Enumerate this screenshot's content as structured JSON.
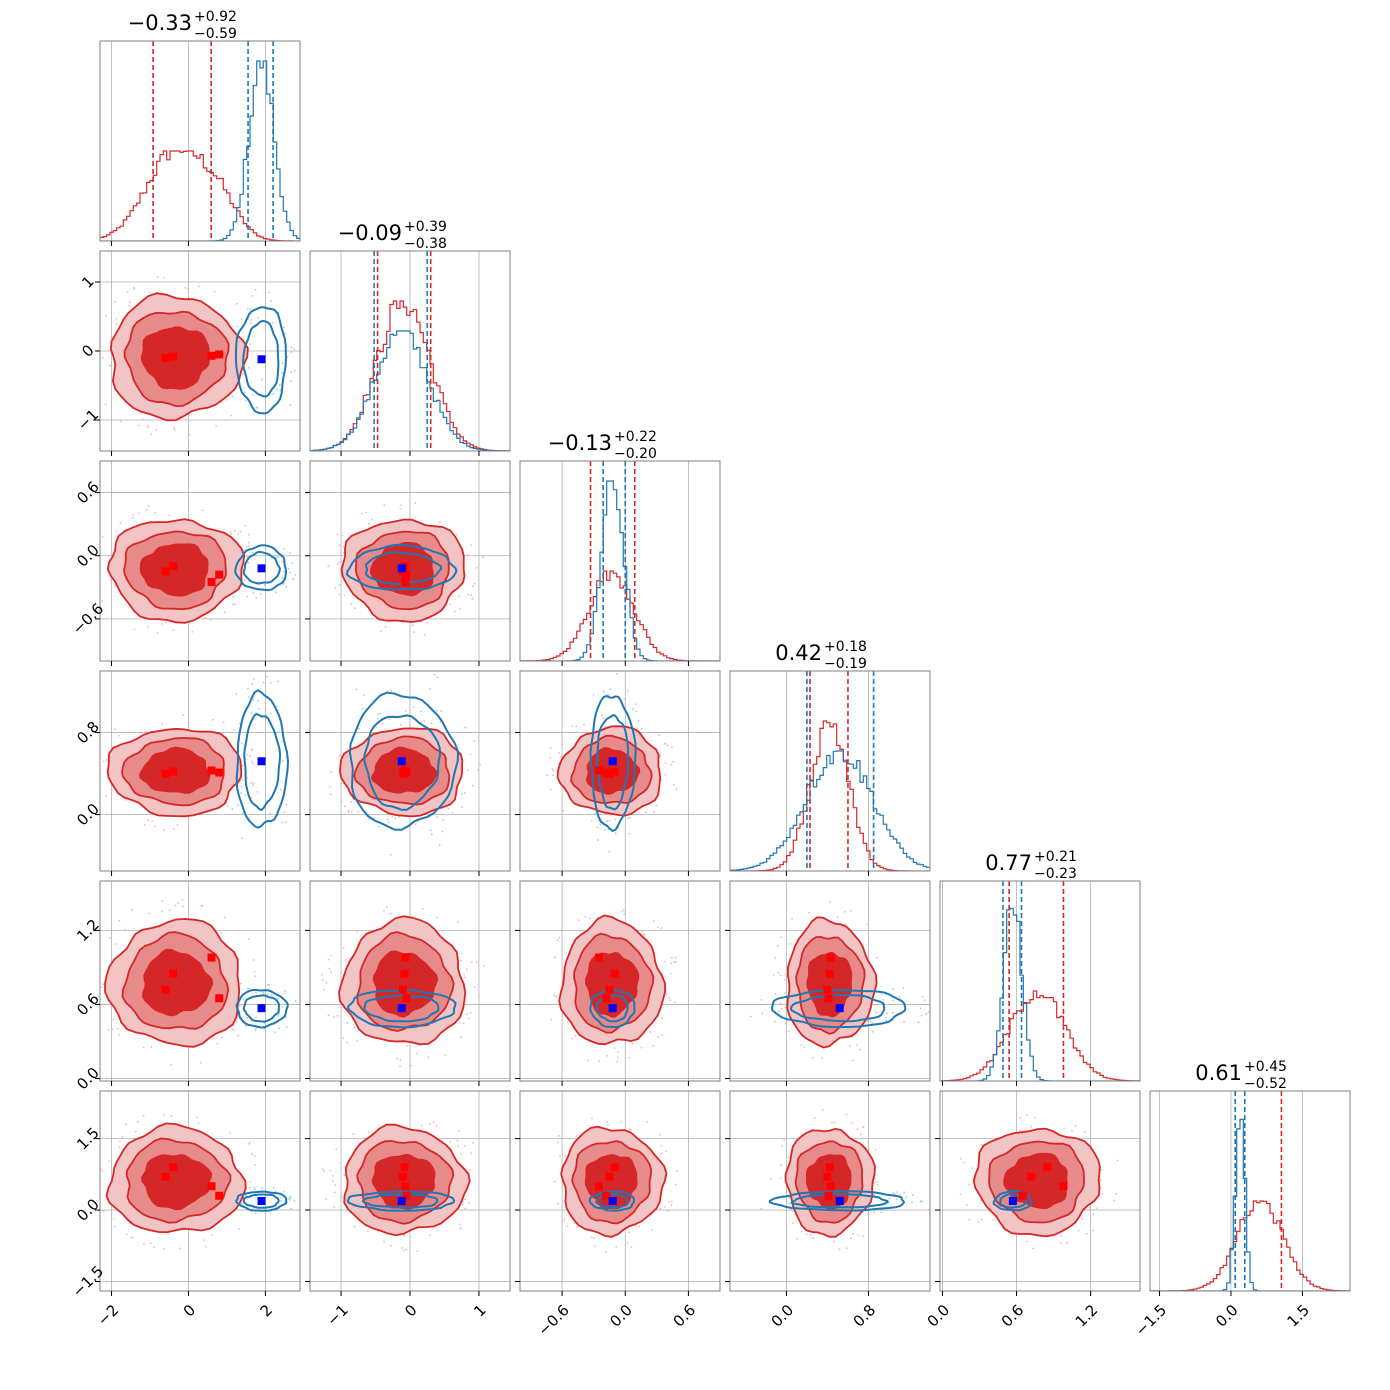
{
  "chart_data": {
    "type": "corner",
    "colors": {
      "posterior_a": "#d62728",
      "posterior_b": "#1f77b4",
      "marker_a": "#ff0000",
      "marker_b": "#0000ff",
      "grid": "#b0b0b0"
    },
    "grid": true,
    "titles": [
      {
        "median": "−0.33",
        "plus": "+0.92",
        "minus": "−0.59"
      },
      {
        "median": "−0.09",
        "plus": "+0.39",
        "minus": "−0.38"
      },
      {
        "median": "−0.13",
        "plus": "+0.22",
        "minus": "−0.20"
      },
      {
        "median": "0.42",
        "plus": "+0.18",
        "minus": "−0.19"
      },
      {
        "median": "0.77",
        "plus": "+0.21",
        "minus": "−0.23"
      },
      {
        "median": "0.61",
        "plus": "+0.45",
        "minus": "−0.52"
      }
    ],
    "params": [
      {
        "range": [
          -2.3,
          2.9
        ],
        "ticks": [
          -2,
          0,
          2
        ],
        "tick_labels": [
          "−2",
          "0",
          "2"
        ]
      },
      {
        "range": [
          -1.45,
          1.45
        ],
        "ticks": [
          -1,
          0,
          1
        ],
        "tick_labels": [
          "−1",
          "0",
          "1"
        ]
      },
      {
        "range": [
          -1.0,
          0.9
        ],
        "ticks": [
          -0.6,
          0.0,
          0.6
        ],
        "tick_labels": [
          "−0.6",
          "0.0",
          "0.6"
        ]
      },
      {
        "range": [
          -0.55,
          1.4
        ],
        "ticks": [
          0.0,
          0.8
        ],
        "tick_labels": [
          "0.0",
          "0.8"
        ]
      },
      {
        "range": [
          -0.02,
          1.6
        ],
        "ticks": [
          0.0,
          0.6,
          1.2
        ],
        "tick_labels": [
          "0.0",
          "0.6",
          "1.2"
        ]
      },
      {
        "range": [
          -1.7,
          2.5
        ],
        "ticks": [
          -1.5,
          0.0,
          1.5
        ],
        "tick_labels": [
          "−1.5",
          "0.0",
          "1.5"
        ]
      }
    ],
    "red": {
      "median": [
        -0.33,
        -0.09,
        -0.13,
        0.42,
        0.77,
        0.61
      ],
      "quantiles": [
        [
          -0.92,
          0.59
        ],
        [
          -0.47,
          0.3
        ],
        [
          -0.33,
          0.09
        ],
        [
          0.23,
          0.6
        ],
        [
          0.54,
          0.98
        ],
        [
          0.09,
          1.06
        ]
      ],
      "markers": [
        [
          -0.6,
          -0.1,
          -0.15,
          0.4,
          0.72,
          0.7
        ],
        [
          -0.4,
          -0.08,
          -0.1,
          0.42,
          0.85,
          0.9
        ],
        [
          0.6,
          -0.07,
          -0.25,
          0.43,
          0.98,
          0.5
        ],
        [
          0.8,
          -0.05,
          -0.18,
          0.41,
          0.65,
          0.3
        ]
      ]
    },
    "blue": {
      "median": [
        1.9,
        -0.12,
        -0.12,
        0.52,
        0.57,
        0.19
      ],
      "quantiles": [
        [
          1.55,
          2.2
        ],
        [
          -0.52,
          0.25
        ],
        [
          -0.21,
          0.0
        ],
        [
          0.2,
          0.85
        ],
        [
          0.49,
          0.64
        ],
        [
          0.09,
          0.29
        ]
      ],
      "markers": [
        [
          1.9,
          -0.12,
          -0.12,
          0.52,
          0.57,
          0.19
        ]
      ]
    }
  }
}
